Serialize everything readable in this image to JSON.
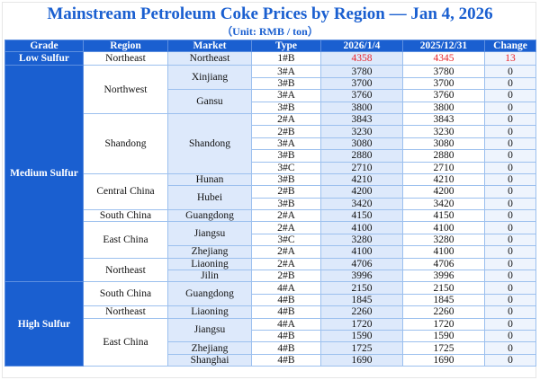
{
  "title": "Mainstream Petroleum Coke Prices by Region — Jan 4, 2026",
  "subtitle": "（Unit: RMB / ton）",
  "headers": [
    "Grade",
    "Region",
    "Market",
    "Type",
    "2026/1/4",
    "2025/12/31",
    "Change"
  ],
  "colors": {
    "header_bg": "#1a5fd0",
    "title": "#1a5fd0",
    "increase": "#e8232a",
    "market_bg": "#dde9fb"
  },
  "groups": [
    {
      "grade": "Low Sulfur",
      "regions": [
        {
          "region": "Northeast",
          "markets": [
            {
              "market": "Northeast",
              "rows": [
                {
                  "type": "1#B",
                  "current": "4358",
                  "previous": "4345",
                  "change": "13",
                  "highlight": true
                }
              ]
            }
          ]
        }
      ]
    },
    {
      "grade": "Medium Sulfur",
      "regions": [
        {
          "region": "Northwest",
          "markets": [
            {
              "market": "Xinjiang",
              "rows": [
                {
                  "type": "3#A",
                  "current": "3780",
                  "previous": "3780",
                  "change": "0"
                },
                {
                  "type": "3#B",
                  "current": "3700",
                  "previous": "3700",
                  "change": "0"
                }
              ]
            },
            {
              "market": "Gansu",
              "rows": [
                {
                  "type": "3#A",
                  "current": "3760",
                  "previous": "3760",
                  "change": "0"
                },
                {
                  "type": "3#B",
                  "current": "3800",
                  "previous": "3800",
                  "change": "0"
                }
              ]
            }
          ]
        },
        {
          "region": "Shandong",
          "markets": [
            {
              "market": "Shandong",
              "rows": [
                {
                  "type": "2#A",
                  "current": "3843",
                  "previous": "3843",
                  "change": "0"
                },
                {
                  "type": "2#B",
                  "current": "3230",
                  "previous": "3230",
                  "change": "0"
                },
                {
                  "type": "3#A",
                  "current": "3080",
                  "previous": "3080",
                  "change": "0"
                },
                {
                  "type": "3#B",
                  "current": "2880",
                  "previous": "2880",
                  "change": "0"
                },
                {
                  "type": "3#C",
                  "current": "2710",
                  "previous": "2710",
                  "change": "0"
                }
              ]
            }
          ]
        },
        {
          "region": "Central China",
          "markets": [
            {
              "market": "Hunan",
              "rows": [
                {
                  "type": "3#B",
                  "current": "4210",
                  "previous": "4210",
                  "change": "0"
                }
              ]
            },
            {
              "market": "Hubei",
              "rows": [
                {
                  "type": "2#B",
                  "current": "4200",
                  "previous": "4200",
                  "change": "0"
                },
                {
                  "type": "3#B",
                  "current": "3420",
                  "previous": "3420",
                  "change": "0"
                }
              ]
            }
          ]
        },
        {
          "region": "South China",
          "markets": [
            {
              "market": "Guangdong",
              "rows": [
                {
                  "type": "2#A",
                  "current": "4150",
                  "previous": "4150",
                  "change": "0"
                }
              ]
            }
          ]
        },
        {
          "region": "East China",
          "markets": [
            {
              "market": "Jiangsu",
              "rows": [
                {
                  "type": "2#A",
                  "current": "4100",
                  "previous": "4100",
                  "change": "0"
                },
                {
                  "type": "3#C",
                  "current": "3280",
                  "previous": "3280",
                  "change": "0"
                }
              ]
            },
            {
              "market": "Zhejiang",
              "rows": [
                {
                  "type": "2#A",
                  "current": "4100",
                  "previous": "4100",
                  "change": "0"
                }
              ]
            }
          ]
        },
        {
          "region": "Northeast",
          "markets": [
            {
              "market": "Liaoning",
              "rows": [
                {
                  "type": "2#A",
                  "current": "4706",
                  "previous": "4706",
                  "change": "0"
                }
              ]
            },
            {
              "market": "Jilin",
              "rows": [
                {
                  "type": "2#B",
                  "current": "3996",
                  "previous": "3996",
                  "change": "0"
                }
              ]
            }
          ]
        }
      ]
    },
    {
      "grade": "High Sulfur",
      "regions": [
        {
          "region": "South China",
          "markets": [
            {
              "market": "Guangdong",
              "rows": [
                {
                  "type": "4#A",
                  "current": "2150",
                  "previous": "2150",
                  "change": "0"
                },
                {
                  "type": "4#B",
                  "current": "1845",
                  "previous": "1845",
                  "change": "0"
                }
              ]
            }
          ]
        },
        {
          "region": "Northeast",
          "markets": [
            {
              "market": "Liaoning",
              "rows": [
                {
                  "type": "4#B",
                  "current": "2260",
                  "previous": "2260",
                  "change": "0"
                }
              ]
            }
          ]
        },
        {
          "region": "East China",
          "markets": [
            {
              "market": "Jiangsu",
              "rows": [
                {
                  "type": "4#A",
                  "current": "1720",
                  "previous": "1720",
                  "change": "0"
                },
                {
                  "type": "4#B",
                  "current": "1590",
                  "previous": "1590",
                  "change": "0"
                }
              ]
            },
            {
              "market": "Zhejiang",
              "rows": [
                {
                  "type": "4#B",
                  "current": "1725",
                  "previous": "1725",
                  "change": "0"
                }
              ]
            },
            {
              "market": "Shanghai",
              "rows": [
                {
                  "type": "4#B",
                  "current": "1690",
                  "previous": "1690",
                  "change": "0"
                }
              ]
            }
          ]
        }
      ]
    }
  ]
}
